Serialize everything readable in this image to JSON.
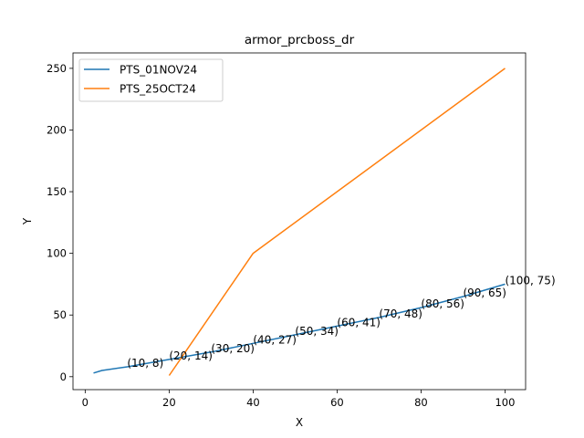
{
  "chart_data": {
    "type": "line",
    "title": "armor_prcboss_dr",
    "xlabel": "X",
    "ylabel": "Y",
    "xlim": [
      -2.9,
      104.9
    ],
    "ylim": [
      -10.5,
      262.5
    ],
    "xticks": [
      0,
      20,
      40,
      60,
      80,
      100
    ],
    "yticks": [
      0,
      50,
      100,
      150,
      200,
      250
    ],
    "grid": false,
    "legend_position": "top-left",
    "series": [
      {
        "name": "PTS_01NOV24",
        "color": "#1f77b4",
        "x": [
          2,
          4,
          10,
          20,
          30,
          40,
          50,
          60,
          70,
          80,
          90,
          100
        ],
        "y": [
          3,
          5,
          8,
          14,
          20,
          27,
          34,
          41,
          48,
          56,
          65,
          75
        ]
      },
      {
        "name": "PTS_25OCT24",
        "color": "#ff7f0e",
        "x": [
          20,
          40,
          100
        ],
        "y": [
          1,
          100,
          250
        ]
      }
    ],
    "annotations": [
      {
        "x": 10,
        "y": 8,
        "text": "(10, 8)"
      },
      {
        "x": 20,
        "y": 14,
        "text": "(20, 14)"
      },
      {
        "x": 30,
        "y": 20,
        "text": "(30, 20)"
      },
      {
        "x": 40,
        "y": 27,
        "text": "(40, 27)"
      },
      {
        "x": 50,
        "y": 34,
        "text": "(50, 34)"
      },
      {
        "x": 60,
        "y": 41,
        "text": "(60, 41)"
      },
      {
        "x": 70,
        "y": 48,
        "text": "(70, 48)"
      },
      {
        "x": 80,
        "y": 56,
        "text": "(80, 56)"
      },
      {
        "x": 90,
        "y": 65,
        "text": "(90, 65)"
      },
      {
        "x": 100,
        "y": 75,
        "text": "(100, 75)"
      }
    ]
  }
}
